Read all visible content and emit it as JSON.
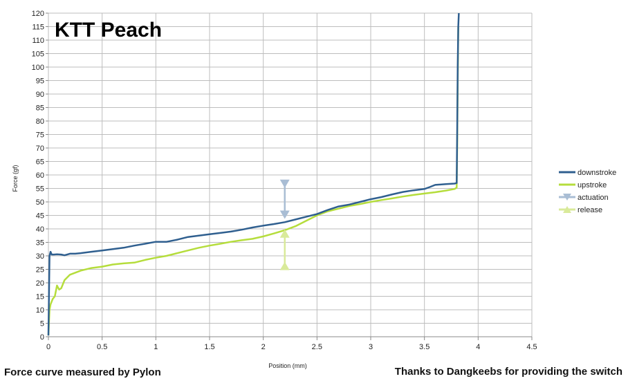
{
  "chart_data": {
    "type": "line",
    "title": "KTT Peach",
    "xlabel": "Position (mm)",
    "ylabel": "Force (gf)",
    "xlim": [
      0,
      4.5
    ],
    "ylim": [
      0,
      120
    ],
    "xticks": [
      0,
      0.5,
      1,
      1.5,
      2,
      2.5,
      3,
      3.5,
      4,
      4.5
    ],
    "yticks": [
      0,
      5,
      10,
      15,
      20,
      25,
      30,
      35,
      40,
      45,
      50,
      55,
      60,
      65,
      70,
      75,
      80,
      85,
      90,
      95,
      100,
      105,
      110,
      115,
      120
    ],
    "grid": true,
    "legend_position": "right",
    "colors": {
      "downstroke": "#2f5f8f",
      "upstroke": "#b5dd3c",
      "actuation": "#a9bdd4",
      "release": "#d9ea9a",
      "grid": "#bdbdbd"
    },
    "series": [
      {
        "name": "downstroke",
        "x": [
          0.0,
          0.01,
          0.02,
          0.03,
          0.05,
          0.08,
          0.12,
          0.15,
          0.2,
          0.25,
          0.3,
          0.4,
          0.5,
          0.6,
          0.7,
          0.8,
          0.9,
          1.0,
          1.1,
          1.2,
          1.3,
          1.4,
          1.5,
          1.6,
          1.7,
          1.8,
          1.9,
          2.0,
          2.1,
          2.2,
          2.3,
          2.4,
          2.5,
          2.6,
          2.7,
          2.8,
          2.9,
          3.0,
          3.1,
          3.2,
          3.3,
          3.4,
          3.5,
          3.55,
          3.6,
          3.7,
          3.78,
          3.8,
          3.805,
          3.81,
          3.815,
          3.82
        ],
        "y": [
          0.5,
          30,
          31.5,
          30.5,
          30.5,
          30.6,
          30.5,
          30.2,
          30.8,
          30.8,
          31,
          31.5,
          32,
          32.5,
          33,
          33.8,
          34.5,
          35.2,
          35.2,
          36,
          37,
          37.5,
          38,
          38.5,
          39,
          39.7,
          40.5,
          41.2,
          41.8,
          42.5,
          43.5,
          44.5,
          45.5,
          47,
          48.3,
          49,
          50,
          51,
          51.8,
          52.8,
          53.7,
          54.3,
          54.8,
          55.5,
          56.3,
          56.6,
          56.8,
          57,
          75,
          100,
          115,
          120
        ]
      },
      {
        "name": "upstroke",
        "x": [
          0.0,
          0.01,
          0.02,
          0.04,
          0.06,
          0.08,
          0.1,
          0.12,
          0.15,
          0.2,
          0.3,
          0.4,
          0.5,
          0.6,
          0.7,
          0.8,
          0.9,
          1.0,
          1.1,
          1.2,
          1.3,
          1.4,
          1.5,
          1.6,
          1.7,
          1.8,
          1.9,
          2.0,
          2.1,
          2.2,
          2.3,
          2.4,
          2.5,
          2.6,
          2.7,
          2.8,
          2.9,
          3.0,
          3.1,
          3.2,
          3.3,
          3.4,
          3.5,
          3.6,
          3.7,
          3.78,
          3.8,
          3.805,
          3.81,
          3.815
        ],
        "y": [
          0.5,
          10,
          12,
          14,
          15,
          19,
          17.5,
          18,
          21,
          23,
          24.5,
          25.5,
          26,
          26.8,
          27.2,
          27.5,
          28.5,
          29.3,
          30,
          31,
          32,
          33,
          33.8,
          34.5,
          35.2,
          35.8,
          36.3,
          37.2,
          38.3,
          39.5,
          41,
          43,
          45,
          46.5,
          47.5,
          48.5,
          49.2,
          50,
          50.7,
          51.3,
          52,
          52.6,
          53.1,
          53.6,
          54.2,
          54.8,
          55.3,
          70,
          95,
          115
        ]
      }
    ],
    "markers": [
      {
        "name": "actuation",
        "x": 2.2,
        "y": [
          57,
          45.5
        ]
      },
      {
        "name": "release",
        "x": 2.2,
        "y": [
          26,
          38
        ]
      }
    ]
  },
  "footer": {
    "left": "Force curve measured by Pylon",
    "right": "Thanks to Dangkeebs for providing the switch"
  }
}
